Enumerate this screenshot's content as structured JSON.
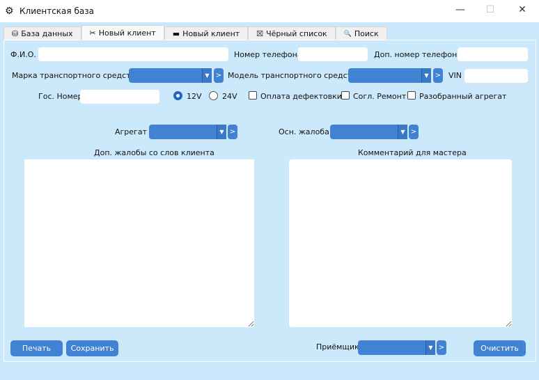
{
  "window": {
    "title": "Клиентская база",
    "icon": "gear-search-icon",
    "minimize": "—",
    "maximize": "☐",
    "close": "✕"
  },
  "tabs": [
    {
      "label": "База данных",
      "icon": "database-icon",
      "glyph": "⛁"
    },
    {
      "label": "Новый клиент",
      "icon": "tools-icon",
      "glyph": "✂",
      "active": true
    },
    {
      "label": "Новый клиент",
      "icon": "battery-icon",
      "glyph": "▬"
    },
    {
      "label": "Чёрный список",
      "icon": "blacklist-icon",
      "glyph": "☒"
    },
    {
      "label": "Поиск",
      "icon": "search-icon",
      "glyph": "🔍"
    }
  ],
  "form": {
    "fio_label": "Ф.И.О.",
    "fio_value": "",
    "phone_label": "Номер телефона",
    "phone_value": "",
    "phone2_label": "Доп. номер телефона",
    "phone2_value": "",
    "brand_label": "Марка транспортного средства",
    "brand_value": "",
    "model_label": "Модель транспортного средства",
    "model_value": "",
    "vin_label": "VIN",
    "vin_value": "",
    "plate_label": "Гос. Номер",
    "plate_value": "",
    "voltage_options": [
      "12V",
      "24V"
    ],
    "voltage_selected": "12V",
    "checkboxes": [
      {
        "label": "Оплата дефектовки",
        "checked": false
      },
      {
        "label": "Согл. Ремонт",
        "checked": false
      },
      {
        "label": "Разобранный агрегат",
        "checked": false
      }
    ],
    "unit_label": "Агрегат",
    "unit_value": "",
    "complaint_label": "Осн. жалоба",
    "complaint_value": "",
    "extra_label": "Доп. жалобы со слов клиента",
    "extra_value": "",
    "comment_label": "Комментарий для мастера",
    "comment_value": "",
    "receiver_label": "Приёмщик",
    "receiver_value": "",
    "go": ">",
    "arrow": "▼"
  },
  "buttons": {
    "print": "Печать",
    "save": "Сохранить",
    "clear": "Очистить"
  },
  "colors": {
    "background": "#c9e8fb",
    "accent": "#4282d3"
  }
}
